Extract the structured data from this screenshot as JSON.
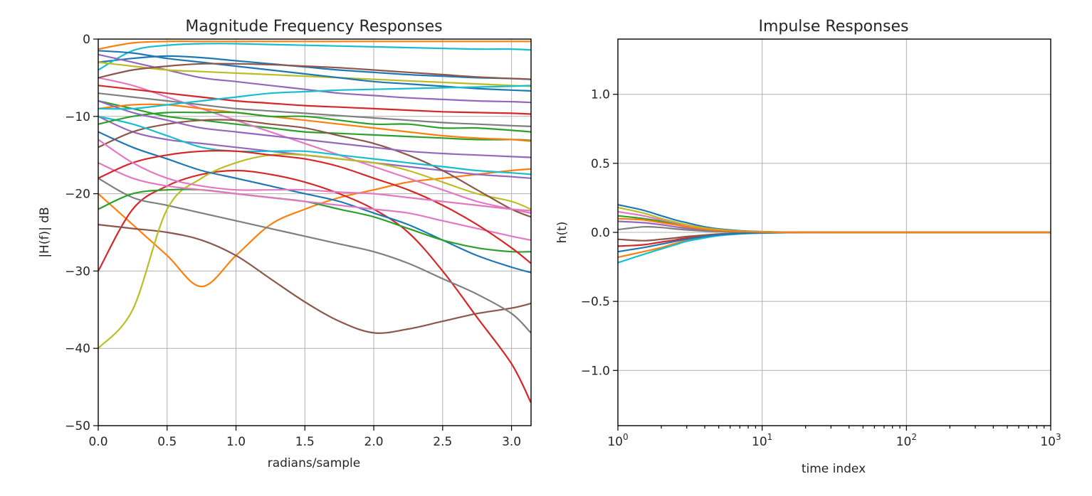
{
  "chart_data": [
    {
      "type": "line",
      "title": "Magnitude Frequency Responses",
      "xlabel": "radians/sample",
      "ylabel": "|H(f)| dB",
      "xlim": [
        0,
        3.14159
      ],
      "ylim": [
        -50,
        0
      ],
      "xticks": [
        0.0,
        0.5,
        1.0,
        1.5,
        2.0,
        2.5,
        3.0
      ],
      "xtick_labels": [
        "0.0",
        "0.5",
        "1.0",
        "1.5",
        "2.0",
        "2.5",
        "3.0"
      ],
      "yticks": [
        0,
        -10,
        -20,
        -30,
        -40,
        -50
      ],
      "ytick_labels": [
        "0",
        "−10",
        "−20",
        "−30",
        "−40",
        "−50"
      ],
      "grid": true,
      "legend": "none",
      "x": [
        0,
        0.25,
        0.5,
        0.75,
        1.0,
        1.25,
        1.5,
        1.75,
        2.0,
        2.25,
        2.5,
        2.75,
        3.0,
        3.14
      ],
      "series": [
        {
          "color": "#1f77b4",
          "values": [
            -3,
            -2.5,
            -2.2,
            -2.4,
            -2.8,
            -3.2,
            -3.6,
            -4,
            -4.3,
            -4.6,
            -4.8,
            -5,
            -5.1,
            -5.2
          ]
        },
        {
          "color": "#ff7f0e",
          "values": [
            -20,
            -24,
            -28,
            -32,
            -28,
            -24,
            -22,
            -20.5,
            -19.5,
            -18.5,
            -18,
            -17.5,
            -17,
            -16.8
          ]
        },
        {
          "color": "#2ca02c",
          "values": [
            -8,
            -9,
            -10,
            -10.5,
            -11,
            -11.5,
            -12,
            -12.2,
            -12.4,
            -12.6,
            -12.8,
            -13,
            -13,
            -13.1
          ]
        },
        {
          "color": "#d62728",
          "values": [
            -30,
            -22,
            -19,
            -17.5,
            -17,
            -17.5,
            -18.5,
            -20,
            -22,
            -25,
            -30,
            -36,
            -42,
            -47
          ]
        },
        {
          "color": "#9467bd",
          "values": [
            -10,
            -12,
            -13,
            -13.5,
            -14,
            -14.5,
            -15,
            -15.5,
            -16,
            -16.5,
            -17,
            -17.5,
            -17.8,
            -18
          ]
        },
        {
          "color": "#8c564b",
          "values": [
            -24,
            -24.5,
            -25,
            -26,
            -28,
            -31,
            -34,
            -36.5,
            -38,
            -37.5,
            -36.5,
            -35.5,
            -34.8,
            -34.2
          ]
        },
        {
          "color": "#e377c2",
          "values": [
            -5,
            -6,
            -7.5,
            -9,
            -10.5,
            -12,
            -13.5,
            -15,
            -16.5,
            -18,
            -19.5,
            -21,
            -22,
            -22.5
          ]
        },
        {
          "color": "#7f7f7f",
          "values": [
            -18,
            -20.5,
            -21.5,
            -22.5,
            -23.5,
            -24.5,
            -25.5,
            -26.5,
            -27.5,
            -29,
            -31,
            -33,
            -35.5,
            -38
          ]
        },
        {
          "color": "#bcbd22",
          "values": [
            -40,
            -35,
            -22,
            -18,
            -16,
            -15,
            -15,
            -15.5,
            -16,
            -17,
            -18.5,
            -20,
            -21,
            -22
          ]
        },
        {
          "color": "#17becf",
          "values": [
            -4,
            -1.5,
            -0.8,
            -0.6,
            -0.6,
            -0.7,
            -0.8,
            -0.9,
            -1,
            -1.1,
            -1.2,
            -1.3,
            -1.3,
            -1.4
          ]
        },
        {
          "color": "#1f77b4",
          "values": [
            -12,
            -14,
            -15.5,
            -17,
            -18,
            -19,
            -20,
            -21,
            -22.5,
            -24,
            -26,
            -28,
            -29.5,
            -30.2
          ]
        },
        {
          "color": "#ff7f0e",
          "values": [
            -9,
            -8.5,
            -8.5,
            -9,
            -9.5,
            -10,
            -10.5,
            -11,
            -11.5,
            -12,
            -12.5,
            -12.8,
            -13,
            -13.2
          ]
        },
        {
          "color": "#2ca02c",
          "values": [
            -22,
            -20,
            -19.5,
            -19.5,
            -20,
            -20.5,
            -21,
            -22,
            -23,
            -24.5,
            -26,
            -27,
            -27.5,
            -27.5
          ]
        },
        {
          "color": "#d62728",
          "values": [
            -6,
            -6.5,
            -7,
            -7.5,
            -8,
            -8.3,
            -8.6,
            -8.8,
            -9,
            -9.2,
            -9.4,
            -9.5,
            -9.6,
            -9.7
          ]
        },
        {
          "color": "#9467bd",
          "values": [
            -2,
            -3,
            -4,
            -5,
            -5.5,
            -6,
            -6.5,
            -7,
            -7.3,
            -7.6,
            -7.8,
            -8,
            -8.1,
            -8.2
          ]
        },
        {
          "color": "#8c564b",
          "values": [
            -14,
            -12,
            -11,
            -10.5,
            -10.5,
            -11,
            -11.5,
            -12.5,
            -13.5,
            -15,
            -17,
            -19.5,
            -22,
            -23
          ]
        },
        {
          "color": "#e377c2",
          "values": [
            -16,
            -18,
            -19,
            -19.5,
            -20,
            -20.5,
            -21,
            -21.5,
            -22,
            -22.5,
            -23.5,
            -24.5,
            -25.5,
            -26
          ]
        },
        {
          "color": "#7f7f7f",
          "values": [
            -7,
            -7.5,
            -8,
            -8.5,
            -9,
            -9.3,
            -9.6,
            -9.9,
            -10.2,
            -10.5,
            -10.8,
            -11,
            -11.2,
            -11.3
          ]
        },
        {
          "color": "#bcbd22",
          "values": [
            -3,
            -3.5,
            -4,
            -4.2,
            -4.4,
            -4.6,
            -4.8,
            -5,
            -5.2,
            -5.4,
            -5.6,
            -5.8,
            -6,
            -6.1
          ]
        },
        {
          "color": "#17becf",
          "values": [
            -10,
            -11,
            -12.5,
            -14,
            -14.5,
            -14.5,
            -14.5,
            -15,
            -15.5,
            -16,
            -16.5,
            -17,
            -17.3,
            -17.5
          ]
        },
        {
          "color": "#1f77b4",
          "values": [
            -1.5,
            -1.8,
            -2.5,
            -3,
            -3.5,
            -4,
            -4.5,
            -5,
            -5.5,
            -5.8,
            -6.1,
            -6.4,
            -6.6,
            -6.7
          ]
        },
        {
          "color": "#ff7f0e",
          "values": [
            -1.3,
            -0.5,
            -0.3,
            -0.3,
            -0.3,
            -0.3,
            -0.3,
            -0.3,
            -0.3,
            -0.3,
            -0.3,
            -0.3,
            -0.3,
            -0.3
          ]
        },
        {
          "color": "#2ca02c",
          "values": [
            -11,
            -10,
            -9.5,
            -9.5,
            -9.5,
            -10,
            -10,
            -10.5,
            -11,
            -11,
            -11.5,
            -11.5,
            -11.8,
            -12
          ]
        },
        {
          "color": "#d62728",
          "values": [
            -18,
            -16,
            -15,
            -14.5,
            -14.5,
            -15,
            -15.5,
            -16.5,
            -18,
            -19.5,
            -21.5,
            -24,
            -27,
            -29
          ]
        },
        {
          "color": "#9467bd",
          "values": [
            -8,
            -9.5,
            -10.5,
            -11.5,
            -12,
            -12.5,
            -13,
            -13.5,
            -14,
            -14.5,
            -14.8,
            -15,
            -15.2,
            -15.3
          ]
        },
        {
          "color": "#8c564b",
          "values": [
            -5,
            -4,
            -3.5,
            -3.2,
            -3.2,
            -3.3,
            -3.5,
            -3.7,
            -4,
            -4.3,
            -4.6,
            -4.9,
            -5.1,
            -5.2
          ]
        },
        {
          "color": "#e377c2",
          "values": [
            -13,
            -16,
            -18,
            -19,
            -19.5,
            -19.5,
            -19.5,
            -19.8,
            -20,
            -20.5,
            -21,
            -21.5,
            -22,
            -22.2
          ]
        },
        {
          "color": "#17becf",
          "values": [
            -9,
            -9,
            -8.5,
            -8,
            -7.5,
            -7,
            -6.8,
            -6.6,
            -6.5,
            -6.4,
            -6.3,
            -6.2,
            -6.1,
            -6
          ]
        }
      ]
    },
    {
      "type": "line",
      "title": "Impulse Responses",
      "xlabel": "time index",
      "ylabel": "h(t)",
      "xscale": "log",
      "xlim": [
        1,
        1000
      ],
      "ylim": [
        -1.4,
        1.4
      ],
      "xticks": [
        1,
        10,
        100,
        1000
      ],
      "xtick_labels": [
        {
          "base": "10",
          "exp": "0"
        },
        {
          "base": "10",
          "exp": "1"
        },
        {
          "base": "10",
          "exp": "2"
        },
        {
          "base": "10",
          "exp": "3"
        }
      ],
      "yticks": [
        1.0,
        0.5,
        0.0,
        -0.5,
        -1.0
      ],
      "ytick_labels": [
        "1.0",
        "0.5",
        "0.0",
        "−0.5",
        "−1.0"
      ],
      "grid": true,
      "legend": "none",
      "x": [
        1,
        1.5,
        2,
        2.5,
        3,
        4,
        5,
        7,
        10,
        15,
        20,
        30,
        50,
        100,
        1000
      ],
      "series": [
        {
          "color": "#1f77b4",
          "values": [
            0.2,
            0.16,
            0.12,
            0.09,
            0.07,
            0.04,
            0.025,
            0.012,
            0.005,
            0.002,
            0.001,
            0,
            0,
            0,
            0
          ]
        },
        {
          "color": "#ff7f0e",
          "values": [
            -0.18,
            -0.14,
            -0.11,
            -0.08,
            -0.06,
            -0.035,
            -0.02,
            -0.01,
            -0.004,
            -0.001,
            0,
            0,
            0,
            0,
            0
          ]
        },
        {
          "color": "#2ca02c",
          "values": [
            0.12,
            0.1,
            0.08,
            0.06,
            0.045,
            0.028,
            0.016,
            0.008,
            0.003,
            0.001,
            0,
            0,
            0,
            0,
            0
          ]
        },
        {
          "color": "#d62728",
          "values": [
            -0.1,
            -0.09,
            -0.07,
            -0.055,
            -0.04,
            -0.025,
            -0.015,
            -0.007,
            -0.003,
            -0.001,
            0,
            0,
            0,
            0,
            0
          ]
        },
        {
          "color": "#9467bd",
          "values": [
            0.08,
            0.07,
            0.055,
            0.04,
            0.03,
            0.018,
            0.01,
            0.005,
            0.002,
            0,
            0,
            0,
            0,
            0,
            0
          ]
        },
        {
          "color": "#8c564b",
          "values": [
            -0.05,
            -0.06,
            -0.05,
            -0.04,
            -0.03,
            -0.02,
            -0.012,
            -0.006,
            -0.002,
            0,
            0,
            0,
            0,
            0,
            0
          ]
        },
        {
          "color": "#e377c2",
          "values": [
            0.15,
            0.12,
            0.09,
            0.07,
            0.05,
            0.03,
            0.018,
            0.008,
            0.003,
            0.001,
            0,
            0,
            0,
            0,
            0
          ]
        },
        {
          "color": "#7f7f7f",
          "values": [
            0.02,
            0.04,
            0.035,
            0.025,
            0.018,
            0.01,
            0.006,
            0.003,
            0.001,
            0,
            0,
            0,
            0,
            0,
            0
          ]
        },
        {
          "color": "#bcbd22",
          "values": [
            0.18,
            0.14,
            0.1,
            0.075,
            0.055,
            0.032,
            0.02,
            0.009,
            0.004,
            0.001,
            0,
            0,
            0,
            0,
            0
          ]
        },
        {
          "color": "#17becf",
          "values": [
            -0.22,
            -0.16,
            -0.12,
            -0.09,
            -0.065,
            -0.04,
            -0.024,
            -0.011,
            -0.005,
            -0.002,
            0,
            0,
            0,
            0,
            0
          ]
        },
        {
          "color": "#1f77b4",
          "values": [
            -0.14,
            -0.11,
            -0.085,
            -0.065,
            -0.05,
            -0.03,
            -0.018,
            -0.008,
            -0.003,
            -0.001,
            0,
            0,
            0,
            0,
            0
          ]
        },
        {
          "color": "#ff7f0e",
          "values": [
            0.1,
            0.09,
            0.07,
            0.055,
            0.04,
            0.024,
            0.014,
            0.006,
            0.002,
            0,
            0,
            0,
            0,
            0,
            0
          ]
        }
      ]
    }
  ]
}
